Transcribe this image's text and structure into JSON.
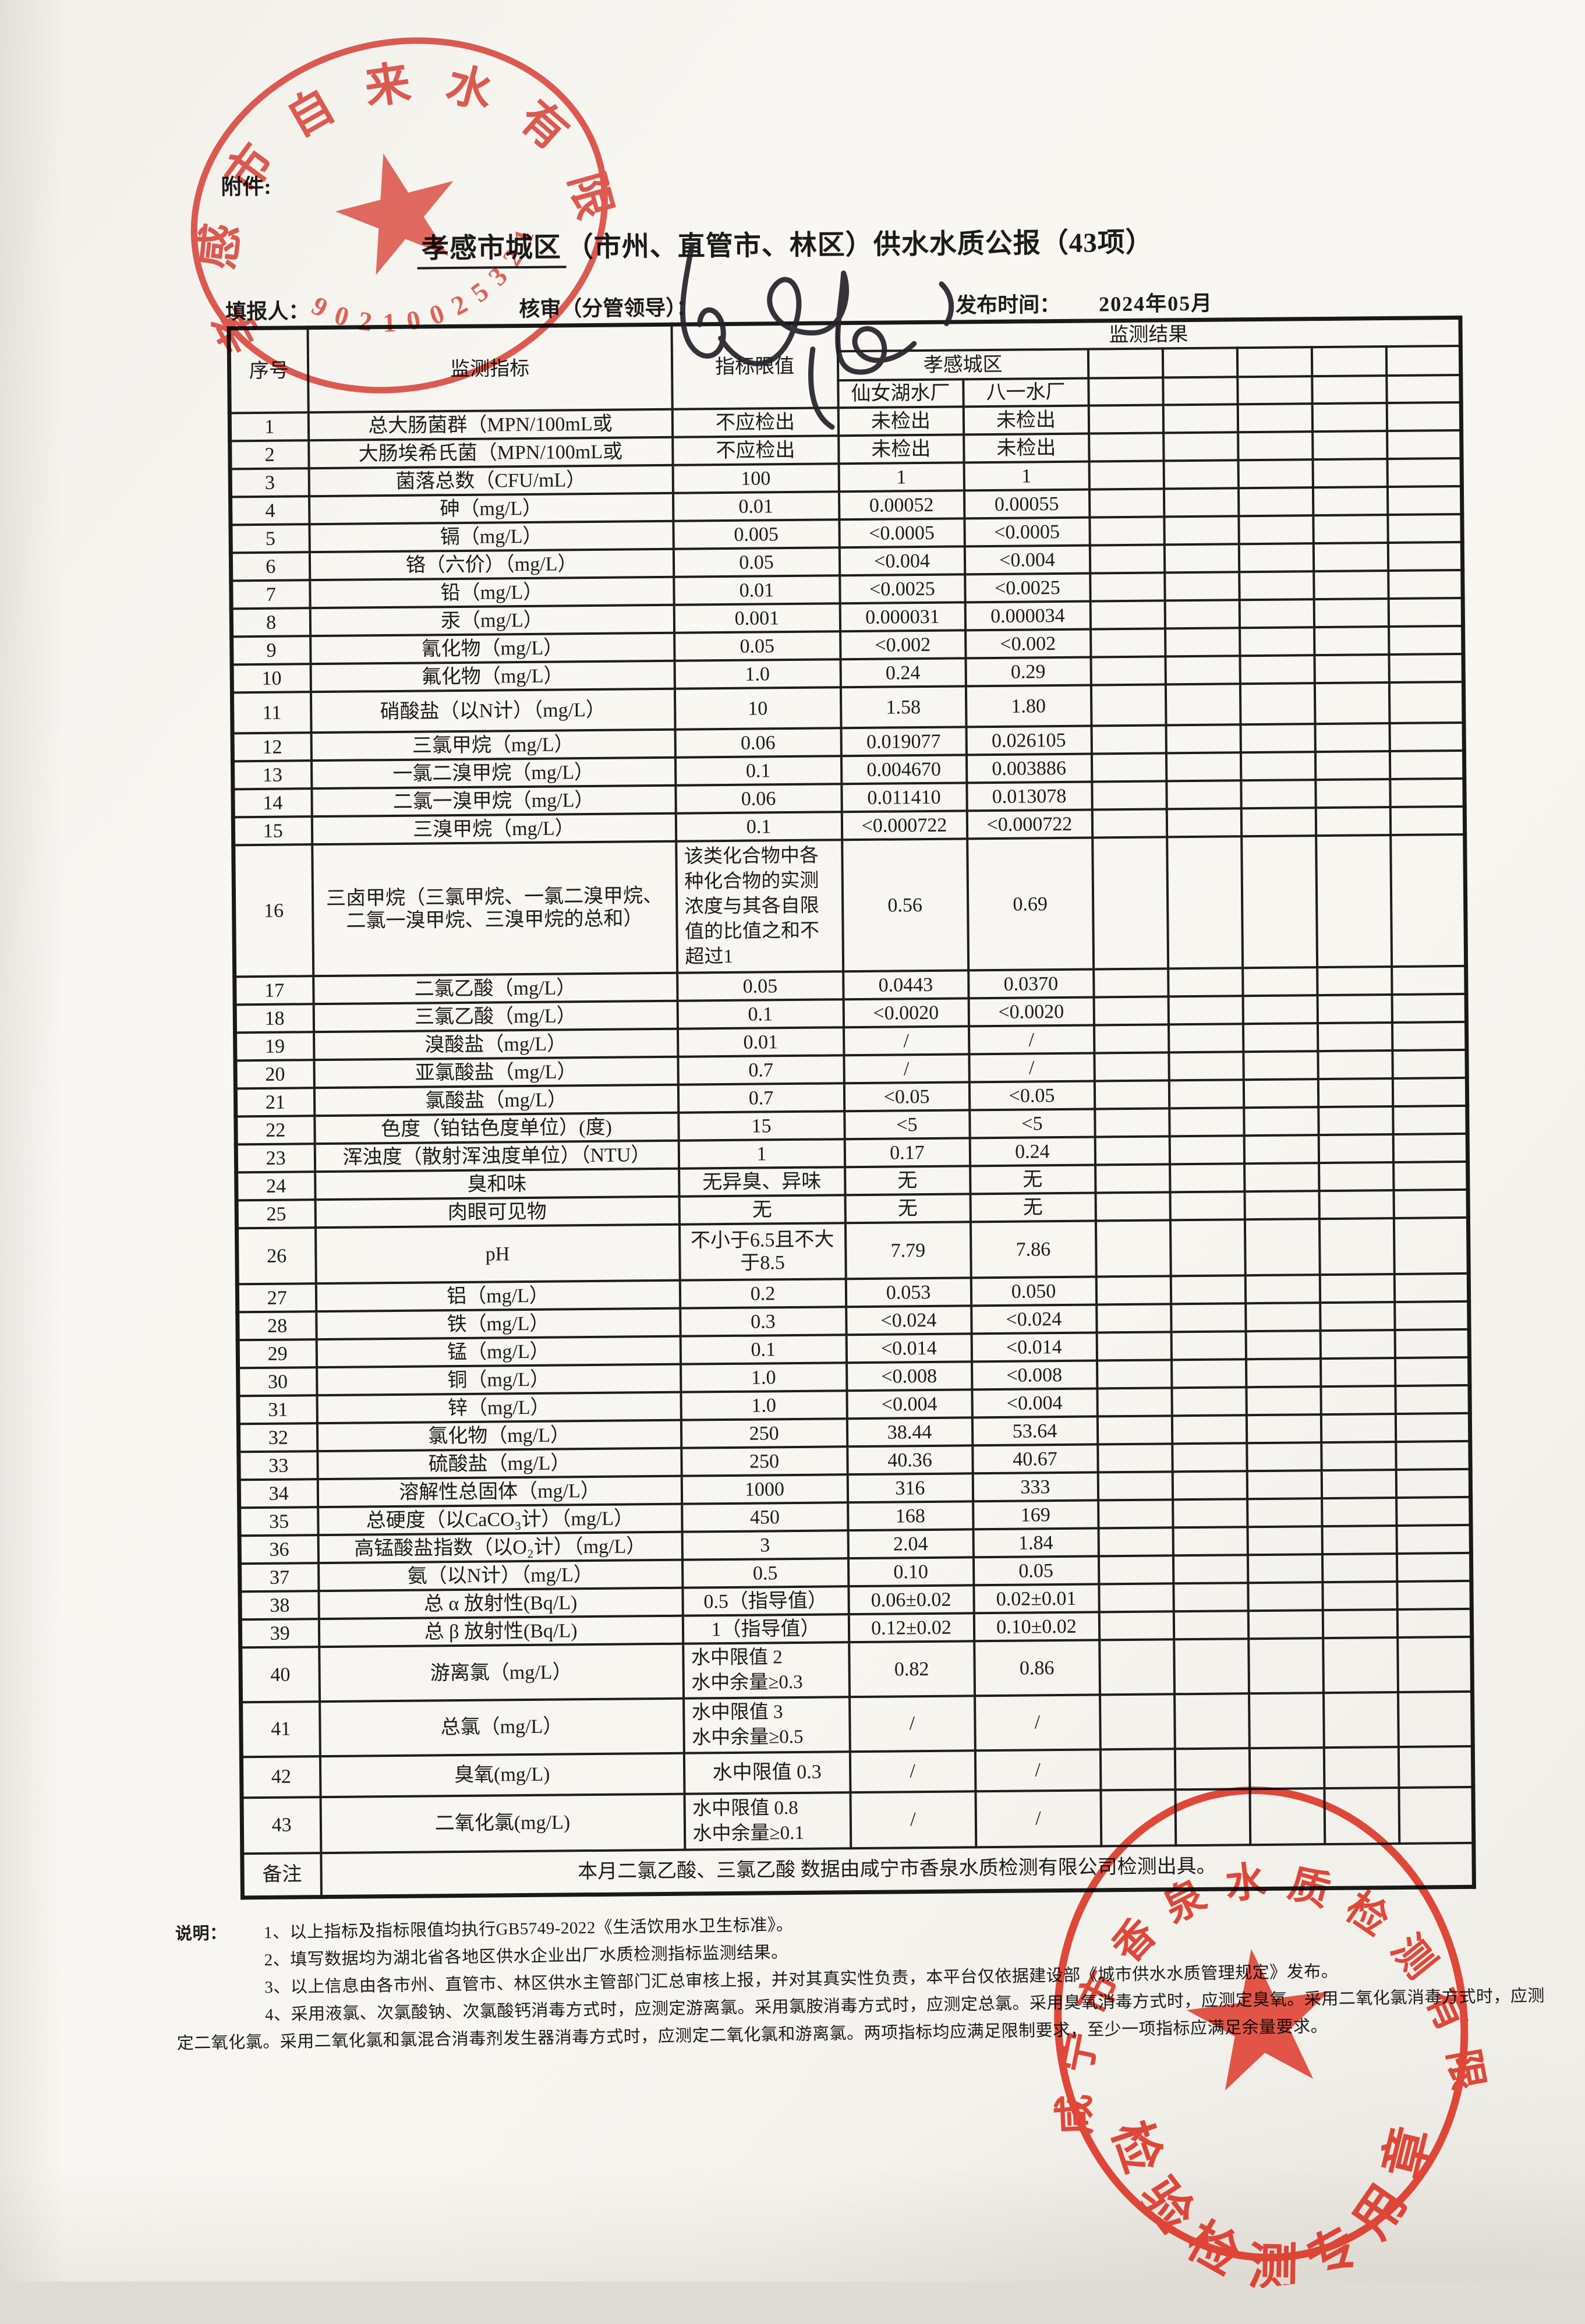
{
  "page": {
    "attachment_label": "附件:",
    "title_underlined": "孝感市城区",
    "title_rest": "（市州、直管市、林区）供水水质公报（43项）",
    "meta": {
      "filler_label": "填报人：",
      "reviewer_label": "核审（分管领导）：",
      "publish_label": "发布时间：",
      "publish_value": "2024年05月"
    }
  },
  "stamps": {
    "top_company_seal": {
      "text": "孝感市自来水有限公司",
      "serial": "90210025321",
      "color": "#d6372b"
    },
    "bottom_inspection_seal": {
      "text": "咸宁市香泉水质检测有限责任公司",
      "subtext": "检验检测专用章",
      "color": "#dc2f1f"
    }
  },
  "table": {
    "headers": {
      "seq": "序号",
      "indicator": "监测指标",
      "limit": "指标限值",
      "result": "监测结果",
      "district": "孝感城区",
      "plant1": "仙女湖水厂",
      "plant2": "八一水厂"
    },
    "rows": [
      {
        "no": "1",
        "indicator": "总大肠菌群（MPN/100mL或",
        "limit": "不应检出",
        "xiannvhu": "未检出",
        "bayi": "未检出"
      },
      {
        "no": "2",
        "indicator": "大肠埃希氏菌（MPN/100mL或",
        "limit": "不应检出",
        "xiannvhu": "未检出",
        "bayi": "未检出"
      },
      {
        "no": "3",
        "indicator": "菌落总数（CFU/mL）",
        "limit": "100",
        "xiannvhu": "1",
        "bayi": "1"
      },
      {
        "no": "4",
        "indicator": "砷（mg/L）",
        "limit": "0.01",
        "xiannvhu": "0.00052",
        "bayi": "0.00055"
      },
      {
        "no": "5",
        "indicator": "镉（mg/L）",
        "limit": "0.005",
        "xiannvhu": "<0.0005",
        "bayi": "<0.0005"
      },
      {
        "no": "6",
        "indicator": "铬（六价）（mg/L）",
        "limit": "0.05",
        "xiannvhu": "<0.004",
        "bayi": "<0.004"
      },
      {
        "no": "7",
        "indicator": "铅（mg/L）",
        "limit": "0.01",
        "xiannvhu": "<0.0025",
        "bayi": "<0.0025"
      },
      {
        "no": "8",
        "indicator": "汞（mg/L）",
        "limit": "0.001",
        "xiannvhu": "0.000031",
        "bayi": "0.000034"
      },
      {
        "no": "9",
        "indicator": "氰化物（mg/L）",
        "limit": "0.05",
        "xiannvhu": "<0.002",
        "bayi": "<0.002"
      },
      {
        "no": "10",
        "indicator": "氟化物（mg/L）",
        "limit": "1.0",
        "xiannvhu": "0.24",
        "bayi": "0.29"
      },
      {
        "no": "11",
        "indicator": "硝酸盐（以N计）（mg/L）",
        "limit": "10",
        "xiannvhu": "1.58",
        "bayi": "1.80"
      },
      {
        "no": "12",
        "indicator": "三氯甲烷（mg/L）",
        "limit": "0.06",
        "xiannvhu": "0.019077",
        "bayi": "0.026105"
      },
      {
        "no": "13",
        "indicator": "一氯二溴甲烷（mg/L）",
        "limit": "0.1",
        "xiannvhu": "0.004670",
        "bayi": "0.003886"
      },
      {
        "no": "14",
        "indicator": "二氯一溴甲烷（mg/L）",
        "limit": "0.06",
        "xiannvhu": "0.011410",
        "bayi": "0.013078"
      },
      {
        "no": "15",
        "indicator": "三溴甲烷（mg/L）",
        "limit": "0.1",
        "xiannvhu": "<0.000722",
        "bayi": "<0.000722"
      },
      {
        "no": "16",
        "indicator": "三卤甲烷（三氯甲烷、一氯二溴甲烷、二氯一溴甲烷、三溴甲烷的总和）",
        "limit": "该类化合物中各种化合物的实测浓度与其各自限值的比值之和不超过1",
        "xiannvhu": "0.56",
        "bayi": "0.69"
      },
      {
        "no": "17",
        "indicator": "二氯乙酸（mg/L）",
        "limit": "0.05",
        "xiannvhu": "0.0443",
        "bayi": "0.0370"
      },
      {
        "no": "18",
        "indicator": "三氯乙酸（mg/L）",
        "limit": "0.1",
        "xiannvhu": "<0.0020",
        "bayi": "<0.0020"
      },
      {
        "no": "19",
        "indicator": "溴酸盐（mg/L）",
        "limit": "0.01",
        "xiannvhu": "/",
        "bayi": "/"
      },
      {
        "no": "20",
        "indicator": "亚氯酸盐（mg/L）",
        "limit": "0.7",
        "xiannvhu": "/",
        "bayi": "/"
      },
      {
        "no": "21",
        "indicator": "氯酸盐（mg/L）",
        "limit": "0.7",
        "xiannvhu": "<0.05",
        "bayi": "<0.05"
      },
      {
        "no": "22",
        "indicator": "色度（铂钴色度单位）(度)",
        "limit": "15",
        "xiannvhu": "<5",
        "bayi": "<5"
      },
      {
        "no": "23",
        "indicator": "浑浊度（散射浑浊度单位）（NTU）",
        "limit": "1",
        "xiannvhu": "0.17",
        "bayi": "0.24"
      },
      {
        "no": "24",
        "indicator": "臭和味",
        "limit": "无异臭、异味",
        "xiannvhu": "无",
        "bayi": "无"
      },
      {
        "no": "25",
        "indicator": "肉眼可见物",
        "limit": "无",
        "xiannvhu": "无",
        "bayi": "无"
      },
      {
        "no": "26",
        "indicator": "pH",
        "limit": "不小于6.5且不大于8.5",
        "xiannvhu": "7.79",
        "bayi": "7.86"
      },
      {
        "no": "27",
        "indicator": "铝（mg/L）",
        "limit": "0.2",
        "xiannvhu": "0.053",
        "bayi": "0.050"
      },
      {
        "no": "28",
        "indicator": "铁（mg/L）",
        "limit": "0.3",
        "xiannvhu": "<0.024",
        "bayi": "<0.024"
      },
      {
        "no": "29",
        "indicator": "锰（mg/L）",
        "limit": "0.1",
        "xiannvhu": "<0.014",
        "bayi": "<0.014"
      },
      {
        "no": "30",
        "indicator": "铜（mg/L）",
        "limit": "1.0",
        "xiannvhu": "<0.008",
        "bayi": "<0.008"
      },
      {
        "no": "31",
        "indicator": "锌（mg/L）",
        "limit": "1.0",
        "xiannvhu": "<0.004",
        "bayi": "<0.004"
      },
      {
        "no": "32",
        "indicator": "氯化物（mg/L）",
        "limit": "250",
        "xiannvhu": "38.44",
        "bayi": "53.64"
      },
      {
        "no": "33",
        "indicator": "硫酸盐（mg/L）",
        "limit": "250",
        "xiannvhu": "40.36",
        "bayi": "40.67"
      },
      {
        "no": "34",
        "indicator": "溶解性总固体（mg/L）",
        "limit": "1000",
        "xiannvhu": "316",
        "bayi": "333"
      },
      {
        "no": "35",
        "indicator": "总硬度（以CaCO₃计）（mg/L）",
        "limit": "450",
        "xiannvhu": "168",
        "bayi": "169"
      },
      {
        "no": "36",
        "indicator": "高锰酸盐指数（以O₂计）（mg/L）",
        "limit": "3",
        "xiannvhu": "2.04",
        "bayi": "1.84"
      },
      {
        "no": "37",
        "indicator": "氨（以N计）（mg/L）",
        "limit": "0.5",
        "xiannvhu": "0.10",
        "bayi": "0.05"
      },
      {
        "no": "38",
        "indicator": "总 α 放射性(Bq/L)",
        "limit": "0.5（指导值）",
        "xiannvhu": "0.06±0.02",
        "bayi": "0.02±0.01"
      },
      {
        "no": "39",
        "indicator": "总 β 放射性(Bq/L)",
        "limit": "1（指导值）",
        "xiannvhu": "0.12±0.02",
        "bayi": "0.10±0.02"
      },
      {
        "no": "40",
        "indicator": "游离氯（mg/L）",
        "limit": "水中限值 2\n水中余量≥0.3",
        "xiannvhu": "0.82",
        "bayi": "0.86"
      },
      {
        "no": "41",
        "indicator": "总氯（mg/L）",
        "limit": "水中限值 3\n水中余量≥0.5",
        "xiannvhu": "/",
        "bayi": "/"
      },
      {
        "no": "42",
        "indicator": "臭氧(mg/L)",
        "limit": "水中限值 0.3",
        "xiannvhu": "/",
        "bayi": "/"
      },
      {
        "no": "43",
        "indicator": "二氧化氯(mg/L)",
        "limit": "水中限值 0.8\n水中余量≥0.1",
        "xiannvhu": "/",
        "bayi": "/"
      }
    ],
    "remark_label": "备注",
    "remark_text": "本月二氯乙酸、三氯乙酸 数据由咸宁市香泉水质检测有限公司检测出具。"
  },
  "notes": {
    "label": "说明：",
    "lines": [
      "1、以上指标及指标限值均执行GB5749-2022《生活饮用水卫生标准》。",
      "2、填写数据均为湖北省各地区供水企业出厂水质检测指标监测结果。",
      "3、以上信息由各市州、直管市、林区供水主管部门汇总审核上报，并对其真实性负责，本平台仅依据建设部《城市供水水质管理规定》发布。",
      "4、采用液氯、次氯酸钠、次氯酸钙消毒方式时，应测定游离氯。采用氯胺消毒方式时，应测定总氯。采用臭氧消毒方式时，应测定臭氧。采用二氧化氯消毒方式时，应测定二氧化氯。采用二氧化氯和氯混合消毒剂发生器消毒方式时，应测定二氧化氯和游离氯。两项指标均应满足限制要求，至少一项指标应满足余量要求。"
    ]
  }
}
